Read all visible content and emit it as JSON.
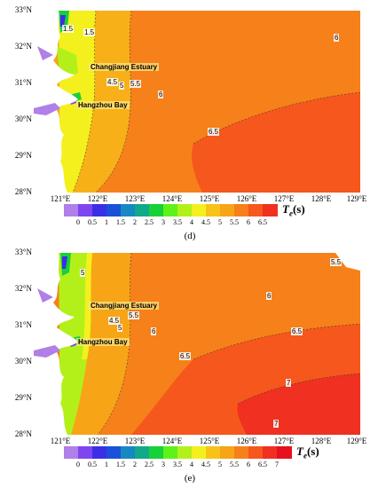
{
  "panels": [
    {
      "label": "(d)",
      "y_ticks": [
        "33°N",
        "32°N",
        "31°N",
        "30°N",
        "29°N",
        "28°N"
      ],
      "x_ticks": [
        "121°E",
        "122°E",
        "123°E",
        "124°E",
        "125°E",
        "126°E",
        "127°E",
        "128°E",
        "129°E"
      ],
      "places": [
        "Changjiang Estuary",
        "Hangzhou Bay"
      ],
      "contour_labels": [
        "1.5",
        "1.5",
        "4.5",
        "5",
        "5.5",
        "6",
        "6",
        "6.5"
      ],
      "colorbar": {
        "ticks": [
          "0",
          "0.5",
          "1",
          "1.5",
          "2",
          "2.5",
          "3",
          "3.5",
          "4",
          "4.5",
          "5",
          "5.5",
          "6",
          "6.5"
        ],
        "colors": [
          "#b07fe8",
          "#7f46f0",
          "#3b2fe6",
          "#1b51d8",
          "#1689c2",
          "#10a98a",
          "#17d13a",
          "#5ef21a",
          "#b3f01a",
          "#f3f01e",
          "#f8c318",
          "#f7a417",
          "#f6801a",
          "#f5571c",
          "#f03020"
        ],
        "variable": "T",
        "variable_sub": "e",
        "unit": "(s)"
      }
    },
    {
      "label": "(e)",
      "y_ticks": [
        "33°N",
        "32°N",
        "31°N",
        "30°N",
        "29°N",
        "28°N"
      ],
      "x_ticks": [
        "121°E",
        "122°E",
        "123°E",
        "124°E",
        "125°E",
        "126°E",
        "127°E",
        "128°E",
        "129°E"
      ],
      "places": [
        "Changjiang Estuary",
        "Hangzhou Bay"
      ],
      "contour_labels": [
        "5",
        "4.5",
        "5",
        "5.5",
        "5.5",
        "6",
        "6",
        "6.5",
        "6.5",
        "7",
        "7"
      ],
      "colorbar": {
        "ticks": [
          "0",
          "0.5",
          "1",
          "1.5",
          "2",
          "2.5",
          "3",
          "3.5",
          "4",
          "4.5",
          "5",
          "5.5",
          "6",
          "6.5",
          "7"
        ],
        "colors": [
          "#b07fe8",
          "#7f46f0",
          "#3b2fe6",
          "#1b51d8",
          "#1689c2",
          "#10a98a",
          "#17d13a",
          "#5ef21a",
          "#b3f01a",
          "#f3f01e",
          "#f8c318",
          "#f7a417",
          "#f6801a",
          "#f5571c",
          "#f03020",
          "#e8101e"
        ],
        "variable": "T",
        "variable_sub": "e",
        "unit": "(s)"
      }
    }
  ]
}
